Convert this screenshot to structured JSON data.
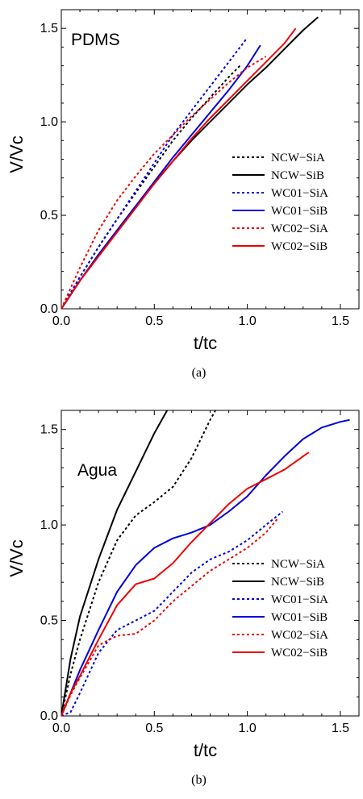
{
  "chart_data": [
    {
      "type": "line",
      "title": "PDMS",
      "caption": "(a)",
      "xlabel": "t/tc",
      "ylabel": "V/Vc",
      "xlim": [
        0,
        1.6
      ],
      "ylim": [
        0,
        1.6
      ],
      "xticks": [
        "0.0",
        "0.5",
        "1.0",
        "1.5"
      ],
      "yticks": [
        "0.0",
        "0.5",
        "1.0",
        "1.5"
      ],
      "legend": "bottom-right",
      "grid": false,
      "series": [
        {
          "name": "NCW−SiA",
          "color": "#000000",
          "dash": "dotted",
          "x": [
            0,
            0.1,
            0.2,
            0.3,
            0.4,
            0.5,
            0.6,
            0.7,
            0.8,
            0.9,
            0.96
          ],
          "y": [
            0,
            0.17,
            0.33,
            0.48,
            0.62,
            0.76,
            0.9,
            1.02,
            1.13,
            1.24,
            1.3
          ]
        },
        {
          "name": "NCW−SiB",
          "color": "#000000",
          "dash": "solid",
          "x": [
            0,
            0.1,
            0.2,
            0.3,
            0.4,
            0.5,
            0.6,
            0.7,
            0.8,
            0.9,
            1.0,
            1.1,
            1.2,
            1.3,
            1.38
          ],
          "y": [
            0,
            0.15,
            0.29,
            0.42,
            0.55,
            0.67,
            0.79,
            0.9,
            1.0,
            1.1,
            1.2,
            1.29,
            1.39,
            1.49,
            1.56
          ]
        },
        {
          "name": "WC01−SiA",
          "color": "#0000dd",
          "dash": "dotted",
          "x": [
            0,
            0.1,
            0.2,
            0.3,
            0.4,
            0.5,
            0.6,
            0.7,
            0.8,
            0.9,
            1.0
          ],
          "y": [
            0,
            0.17,
            0.33,
            0.48,
            0.63,
            0.78,
            0.93,
            1.06,
            1.19,
            1.32,
            1.45
          ]
        },
        {
          "name": "WC01−SiB",
          "color": "#0000dd",
          "dash": "solid",
          "x": [
            0,
            0.1,
            0.2,
            0.3,
            0.4,
            0.5,
            0.6,
            0.7,
            0.8,
            0.9,
            1.0,
            1.07
          ],
          "y": [
            0,
            0.15,
            0.29,
            0.42,
            0.55,
            0.68,
            0.81,
            0.93,
            1.05,
            1.17,
            1.3,
            1.41
          ]
        },
        {
          "name": "WC02−SiA",
          "color": "#ee0000",
          "dash": "dotted",
          "x": [
            0,
            0.1,
            0.2,
            0.3,
            0.4,
            0.5,
            0.6,
            0.7,
            0.8,
            0.9,
            1.0,
            1.1
          ],
          "y": [
            0,
            0.22,
            0.42,
            0.58,
            0.71,
            0.83,
            0.93,
            1.03,
            1.12,
            1.21,
            1.29,
            1.35
          ]
        },
        {
          "name": "WC02−SiB",
          "color": "#ee0000",
          "dash": "solid",
          "x": [
            0,
            0.1,
            0.2,
            0.3,
            0.4,
            0.5,
            0.6,
            0.7,
            0.8,
            0.9,
            1.0,
            1.1,
            1.2,
            1.26
          ],
          "y": [
            0,
            0.15,
            0.28,
            0.41,
            0.54,
            0.67,
            0.79,
            0.91,
            1.02,
            1.12,
            1.22,
            1.32,
            1.42,
            1.5
          ]
        }
      ]
    },
    {
      "type": "line",
      "title": "Agua",
      "caption": "(b)",
      "xlabel": "t/tc",
      "ylabel": "V/Vc",
      "xlim": [
        0,
        1.6
      ],
      "ylim": [
        0,
        1.6
      ],
      "xticks": [
        "0.0",
        "0.5",
        "1.0",
        "1.5"
      ],
      "yticks": [
        "0.0",
        "0.5",
        "1.0",
        "1.5"
      ],
      "legend": "bottom-right",
      "grid": false,
      "series": [
        {
          "name": "NCW−SiA",
          "color": "#000000",
          "dash": "dotted",
          "x": [
            0,
            0.05,
            0.1,
            0.2,
            0.3,
            0.4,
            0.5,
            0.6,
            0.7,
            0.8,
            0.84
          ],
          "y": [
            0,
            0.22,
            0.4,
            0.7,
            0.92,
            1.05,
            1.12,
            1.2,
            1.35,
            1.55,
            1.62
          ]
        },
        {
          "name": "NCW−SiB",
          "color": "#000000",
          "dash": "solid",
          "x": [
            0,
            0.05,
            0.1,
            0.2,
            0.3,
            0.4,
            0.5,
            0.58
          ],
          "y": [
            0,
            0.3,
            0.52,
            0.82,
            1.08,
            1.28,
            1.48,
            1.62
          ]
        },
        {
          "name": "WC01−SiA",
          "color": "#0000dd",
          "dash": "dotted",
          "x": [
            0,
            0.05,
            0.1,
            0.2,
            0.3,
            0.4,
            0.5,
            0.6,
            0.7,
            0.8,
            0.9,
            1.0,
            1.1,
            1.19
          ],
          "y": [
            0,
            0.02,
            0.12,
            0.33,
            0.45,
            0.5,
            0.55,
            0.65,
            0.75,
            0.82,
            0.86,
            0.92,
            1.0,
            1.07
          ]
        },
        {
          "name": "WC01−SiB",
          "color": "#0000dd",
          "dash": "solid",
          "x": [
            0,
            0.05,
            0.1,
            0.2,
            0.3,
            0.4,
            0.5,
            0.6,
            0.7,
            0.8,
            0.9,
            1.0,
            1.1,
            1.2,
            1.3,
            1.4,
            1.5,
            1.55
          ],
          "y": [
            0,
            0.12,
            0.24,
            0.45,
            0.65,
            0.79,
            0.88,
            0.93,
            0.96,
            1.0,
            1.07,
            1.15,
            1.26,
            1.36,
            1.45,
            1.51,
            1.54,
            1.55
          ]
        },
        {
          "name": "WC02−SiA",
          "color": "#ee0000",
          "dash": "dotted",
          "x": [
            0,
            0.05,
            0.1,
            0.2,
            0.3,
            0.4,
            0.5,
            0.6,
            0.7,
            0.8,
            0.9,
            1.0,
            1.1,
            1.16
          ],
          "y": [
            0,
            0.11,
            0.2,
            0.37,
            0.42,
            0.43,
            0.5,
            0.6,
            0.68,
            0.76,
            0.82,
            0.88,
            0.96,
            1.03
          ]
        },
        {
          "name": "WC02−SiB",
          "color": "#ee0000",
          "dash": "solid",
          "x": [
            0,
            0.05,
            0.1,
            0.2,
            0.3,
            0.4,
            0.5,
            0.6,
            0.7,
            0.8,
            0.9,
            1.0,
            1.1,
            1.2,
            1.3,
            1.33
          ],
          "y": [
            0,
            0.12,
            0.21,
            0.4,
            0.58,
            0.69,
            0.72,
            0.8,
            0.91,
            1.01,
            1.11,
            1.19,
            1.24,
            1.29,
            1.36,
            1.38
          ]
        }
      ]
    }
  ]
}
